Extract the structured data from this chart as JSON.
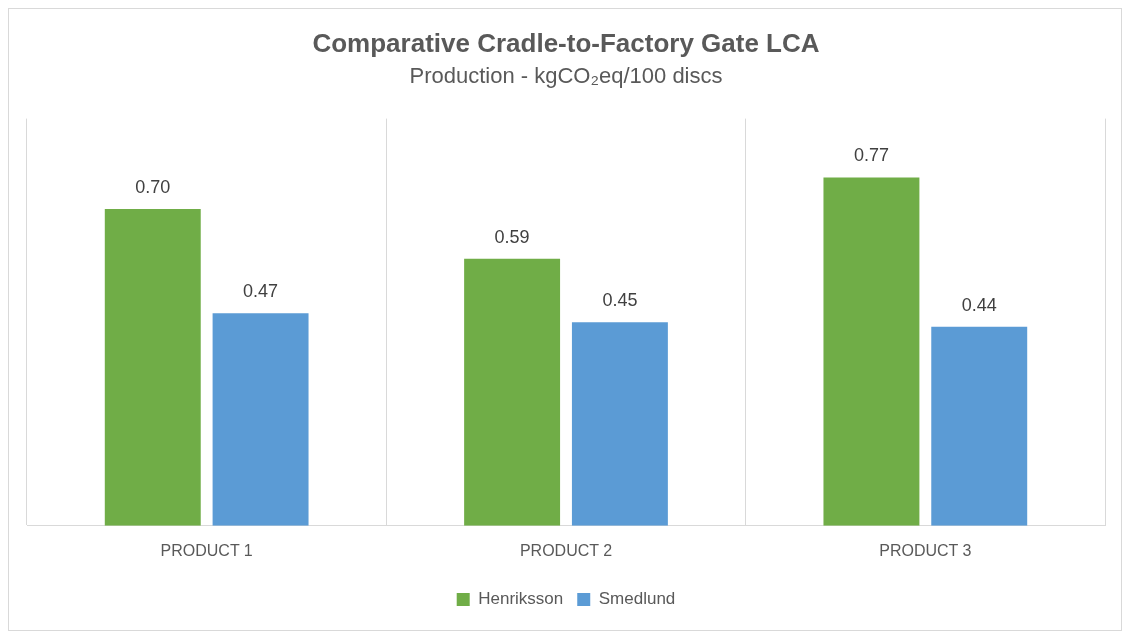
{
  "chart_data": {
    "type": "bar",
    "title": "Comparative Cradle-to-Factory Gate LCA",
    "subtitle": "Production - kgCO₂eq/100 discs",
    "categories": [
      "PRODUCT 1",
      "PRODUCT 2",
      "PRODUCT 3"
    ],
    "series": [
      {
        "name": "Henriksson",
        "color": "#70ad47",
        "values": [
          0.7,
          0.59,
          0.77
        ],
        "value_labels": [
          "0.70",
          "0.59",
          "0.77"
        ]
      },
      {
        "name": "Smedlund",
        "color": "#5b9bd5",
        "values": [
          0.47,
          0.45,
          0.44
        ],
        "value_labels": [
          "0.47",
          "0.45",
          "0.44"
        ]
      }
    ],
    "ylim": [
      0,
      0.9
    ],
    "grid": "x",
    "legend": "bottom",
    "tick_labels": "x"
  }
}
